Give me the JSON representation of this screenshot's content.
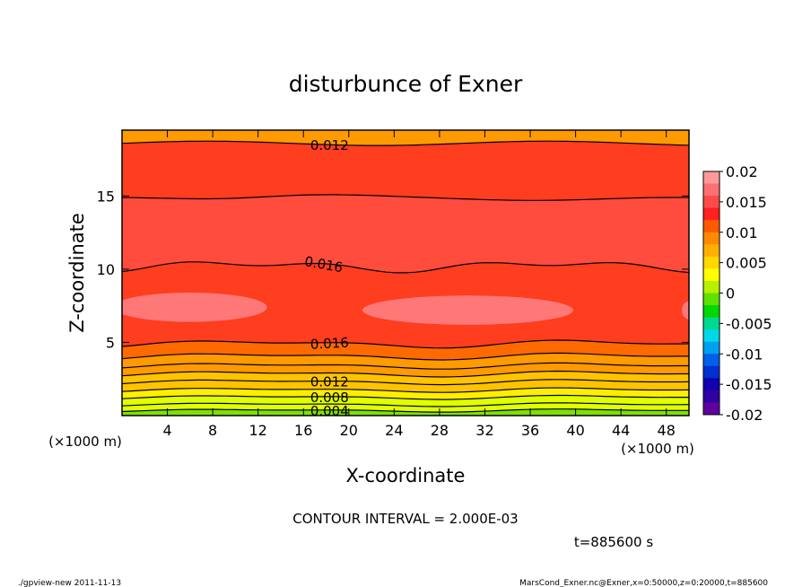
{
  "chart_data": {
    "type": "contour",
    "title": "disturbunce of Exner",
    "xlabel": "X-coordinate",
    "ylabel": "Z-coordinate",
    "x_unit": "(×1000 m)",
    "y_unit": "(×1000 m)",
    "xlim": [
      0,
      50
    ],
    "ylim": [
      0,
      19.5
    ],
    "x_ticks": [
      4,
      8,
      12,
      16,
      20,
      24,
      28,
      32,
      36,
      40,
      44,
      48
    ],
    "y_ticks": [
      5,
      10,
      15
    ],
    "colorbar": {
      "range": [
        -0.02,
        0.02
      ],
      "tick_labels": [
        "0.02",
        "0.015",
        "0.01",
        "0.005",
        "0",
        "-0.005",
        "-0.01",
        "-0.015",
        "-0.02"
      ]
    },
    "contour_labels": [
      "0.004",
      "0.008",
      "0.012",
      "0.016",
      "0.016",
      "0.012"
    ],
    "contour_interval_text": "CONTOUR INTERVAL = 2.000E-03",
    "time_text": "t=885600 s"
  },
  "footer": {
    "left": "./gpview-new   2011-11-13",
    "right": "MarsCond_Exner.nc@Exner,x=0:50000,z=0:20000,t=885600"
  },
  "colors": {
    "v004": "#e0ff00",
    "v006": "#ffee00",
    "v008": "#ffc300",
    "v010": "#ff9a00",
    "v012": "#ff6a00",
    "v014": "#ff3d1f",
    "v016": "#ff4c3c",
    "v018": "#ff6464",
    "pink": "#ff7878"
  }
}
